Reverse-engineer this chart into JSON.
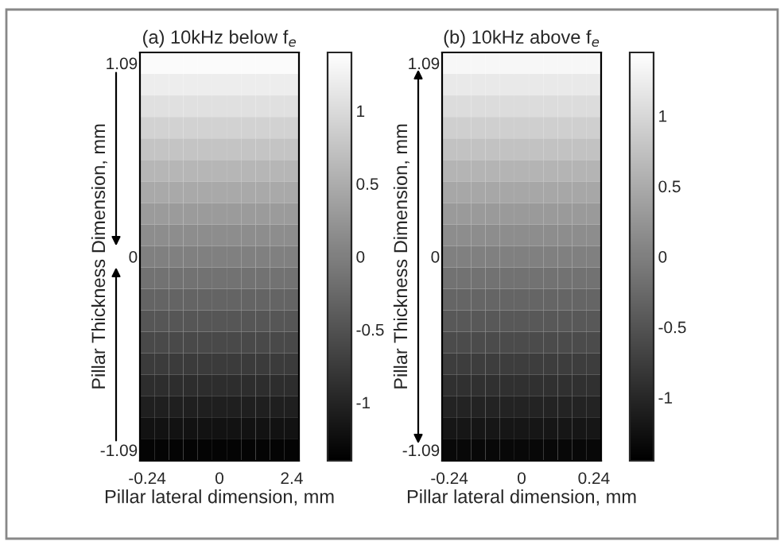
{
  "chart_data": [
    {
      "type": "heatmap",
      "title": "(a) 10kHz below f$_{e}$",
      "xlabel": "Pillar lateral dimension, mm",
      "ylabel": "Pillar Thickness Dimension, mm",
      "categories": [
        "-0.24",
        null,
        null,
        null,
        null,
        "0",
        null,
        null,
        null,
        null,
        "2.4"
      ],
      "y_categories": [
        "1.09",
        null,
        null,
        null,
        null,
        null,
        null,
        null,
        null,
        "0",
        null,
        null,
        null,
        null,
        null,
        null,
        null,
        null,
        "-1.09"
      ],
      "cells": [
        [
          1.35,
          1.35,
          1.35,
          1.35,
          1.35,
          1.35,
          1.35,
          1.35,
          1.35,
          1.35,
          1.35
        ],
        [
          1.2,
          1.2,
          1.2,
          1.2,
          1.2,
          1.2,
          1.2,
          1.2,
          1.2,
          1.2,
          1.2
        ],
        [
          1.05,
          1.05,
          1.05,
          1.05,
          1.05,
          1.05,
          1.05,
          1.05,
          1.05,
          1.05,
          1.05
        ],
        [
          0.9,
          0.9,
          0.9,
          0.9,
          0.9,
          0.9,
          0.9,
          0.9,
          0.9,
          0.9,
          0.9
        ],
        [
          0.75,
          0.75,
          0.75,
          0.75,
          0.75,
          0.75,
          0.75,
          0.75,
          0.75,
          0.75,
          0.75
        ],
        [
          0.6,
          0.6,
          0.6,
          0.6,
          0.6,
          0.6,
          0.6,
          0.6,
          0.6,
          0.6,
          0.6
        ],
        [
          0.45,
          0.45,
          0.45,
          0.45,
          0.45,
          0.45,
          0.45,
          0.45,
          0.45,
          0.45,
          0.45
        ],
        [
          0.3,
          0.3,
          0.3,
          0.3,
          0.3,
          0.3,
          0.3,
          0.3,
          0.3,
          0.3,
          0.3
        ],
        [
          0.15,
          0.15,
          0.15,
          0.15,
          0.15,
          0.15,
          0.15,
          0.15,
          0.15,
          0.15,
          0.15
        ],
        [
          0.0,
          0.0,
          0.0,
          0.0,
          0.0,
          0.0,
          0.0,
          0.0,
          0.0,
          0.0,
          0.0
        ],
        [
          -0.15,
          -0.15,
          -0.15,
          -0.15,
          -0.15,
          -0.15,
          -0.15,
          -0.15,
          -0.15,
          -0.15,
          -0.15
        ],
        [
          -0.3,
          -0.3,
          -0.3,
          -0.3,
          -0.3,
          -0.3,
          -0.3,
          -0.3,
          -0.3,
          -0.3,
          -0.3
        ],
        [
          -0.45,
          -0.45,
          -0.45,
          -0.45,
          -0.45,
          -0.45,
          -0.45,
          -0.45,
          -0.45,
          -0.45,
          -0.45
        ],
        [
          -0.6,
          -0.6,
          -0.6,
          -0.6,
          -0.6,
          -0.6,
          -0.6,
          -0.6,
          -0.6,
          -0.6,
          -0.6
        ],
        [
          -0.75,
          -0.75,
          -0.75,
          -0.75,
          -0.75,
          -0.75,
          -0.75,
          -0.75,
          -0.75,
          -0.75,
          -0.75
        ],
        [
          -0.9,
          -0.9,
          -0.9,
          -0.9,
          -0.9,
          -0.9,
          -0.9,
          -0.9,
          -0.9,
          -0.9,
          -0.9
        ],
        [
          -1.05,
          -1.05,
          -1.05,
          -1.05,
          -1.05,
          -1.05,
          -1.05,
          -1.05,
          -1.05,
          -1.05,
          -1.05
        ],
        [
          -1.2,
          -1.2,
          -1.2,
          -1.2,
          -1.2,
          -1.2,
          -1.2,
          -1.2,
          -1.2,
          -1.2,
          -1.2
        ],
        [
          -1.35,
          -1.35,
          -1.35,
          -1.35,
          -1.35,
          -1.35,
          -1.35,
          -1.35,
          -1.35,
          -1.35,
          -1.35
        ]
      ],
      "clim": [
        -1.4,
        1.4
      ],
      "cticks": [
        -1,
        -0.5,
        0,
        0.5,
        1
      ]
    },
    {
      "type": "heatmap",
      "title": "(b) 10kHz above f$_{e}$",
      "xlabel": "Pillar lateral dimension, mm",
      "ylabel": "Pillar Thickness Dimension, mm",
      "categories": [
        "-0.24",
        null,
        null,
        null,
        null,
        "0",
        null,
        null,
        null,
        null,
        "0.24"
      ],
      "y_categories": [
        "1.09",
        null,
        null,
        null,
        null,
        null,
        null,
        null,
        null,
        "0",
        null,
        null,
        null,
        null,
        null,
        null,
        null,
        null,
        "-1.09"
      ],
      "cells": [
        [
          1.35,
          1.35,
          1.35,
          1.35,
          1.35,
          1.35,
          1.35,
          1.35,
          1.35,
          1.35,
          1.35
        ],
        [
          1.2,
          1.2,
          1.2,
          1.2,
          1.2,
          1.2,
          1.2,
          1.2,
          1.2,
          1.2,
          1.2
        ],
        [
          1.05,
          1.05,
          1.05,
          1.05,
          1.05,
          1.05,
          1.05,
          1.05,
          1.05,
          1.05,
          1.05
        ],
        [
          0.9,
          0.9,
          0.9,
          0.9,
          0.9,
          0.9,
          0.9,
          0.9,
          0.9,
          0.9,
          0.9
        ],
        [
          0.75,
          0.75,
          0.75,
          0.75,
          0.75,
          0.75,
          0.75,
          0.75,
          0.75,
          0.75,
          0.75
        ],
        [
          0.6,
          0.6,
          0.6,
          0.6,
          0.6,
          0.6,
          0.6,
          0.6,
          0.6,
          0.6,
          0.6
        ],
        [
          0.45,
          0.45,
          0.45,
          0.45,
          0.45,
          0.45,
          0.45,
          0.45,
          0.45,
          0.45,
          0.45
        ],
        [
          0.3,
          0.3,
          0.3,
          0.3,
          0.3,
          0.3,
          0.3,
          0.3,
          0.3,
          0.3,
          0.3
        ],
        [
          0.15,
          0.15,
          0.15,
          0.15,
          0.15,
          0.15,
          0.15,
          0.15,
          0.15,
          0.15,
          0.15
        ],
        [
          0.0,
          0.0,
          0.0,
          0.0,
          0.0,
          0.0,
          0.0,
          0.0,
          0.0,
          0.0,
          0.0
        ],
        [
          -0.15,
          -0.15,
          -0.15,
          -0.15,
          -0.15,
          -0.15,
          -0.15,
          -0.15,
          -0.15,
          -0.15,
          -0.15
        ],
        [
          -0.3,
          -0.3,
          -0.3,
          -0.3,
          -0.3,
          -0.3,
          -0.3,
          -0.3,
          -0.3,
          -0.3,
          -0.3
        ],
        [
          -0.45,
          -0.45,
          -0.45,
          -0.45,
          -0.45,
          -0.45,
          -0.45,
          -0.45,
          -0.45,
          -0.45,
          -0.45
        ],
        [
          -0.6,
          -0.6,
          -0.6,
          -0.6,
          -0.6,
          -0.6,
          -0.6,
          -0.6,
          -0.6,
          -0.6,
          -0.6
        ],
        [
          -0.75,
          -0.75,
          -0.75,
          -0.75,
          -0.75,
          -0.75,
          -0.75,
          -0.75,
          -0.75,
          -0.75,
          -0.75
        ],
        [
          -0.9,
          -0.9,
          -0.9,
          -0.9,
          -0.9,
          -0.9,
          -0.9,
          -0.9,
          -0.9,
          -0.9,
          -0.9
        ],
        [
          -1.05,
          -1.05,
          -1.05,
          -1.05,
          -1.05,
          -1.05,
          -1.05,
          -1.05,
          -1.05,
          -1.05,
          -1.05
        ],
        [
          -1.2,
          -1.2,
          -1.2,
          -1.2,
          -1.2,
          -1.2,
          -1.2,
          -1.2,
          -1.2,
          -1.2,
          -1.2
        ],
        [
          -1.35,
          -1.35,
          -1.35,
          -1.35,
          -1.35,
          -1.35,
          -1.35,
          -1.35,
          -1.35,
          -1.35,
          -1.35
        ]
      ],
      "clim": [
        -1.45,
        1.45
      ],
      "cticks": [
        -1,
        -0.5,
        0,
        0.5,
        1
      ]
    }
  ]
}
